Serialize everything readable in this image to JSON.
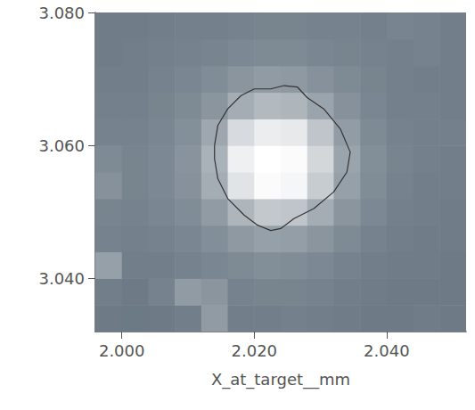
{
  "chart_data": {
    "type": "heatmap",
    "x_label": "X_at_target__mm",
    "xlim": [
      1.996,
      2.052
    ],
    "ylim": [
      3.032,
      3.08
    ],
    "xticks": [
      {
        "value": 2.0,
        "label": "2.000"
      },
      {
        "value": 2.02,
        "label": "2.020"
      },
      {
        "value": 2.04,
        "label": "2.040"
      }
    ],
    "yticks": [
      {
        "value": 3.04,
        "label": "3.040"
      },
      {
        "value": 3.06,
        "label": "3.060"
      },
      {
        "value": 3.08,
        "label": "3.080"
      }
    ],
    "grid": false,
    "x_bins": [
      1.996,
      2.0,
      2.004,
      2.008,
      2.012,
      2.016,
      2.02,
      2.024,
      2.028,
      2.032,
      2.036,
      2.04,
      2.044,
      2.048,
      2.052
    ],
    "y_bins": [
      3.032,
      3.036,
      3.04,
      3.044,
      3.048,
      3.052,
      3.056,
      3.06,
      3.064,
      3.068,
      3.072,
      3.076,
      3.08
    ],
    "zlim": [
      25,
      100
    ],
    "z": [
      [
        28,
        27,
        28,
        30,
        45,
        30,
        30,
        31,
        30,
        29,
        28,
        28,
        29,
        28
      ],
      [
        30,
        28,
        32,
        45,
        42,
        32,
        33,
        33,
        32,
        30,
        29,
        28,
        28,
        28
      ],
      [
        48,
        30,
        30,
        32,
        34,
        36,
        38,
        37,
        35,
        32,
        30,
        29,
        29,
        28
      ],
      [
        32,
        31,
        32,
        34,
        38,
        44,
        48,
        47,
        42,
        36,
        32,
        30,
        29,
        29
      ],
      [
        33,
        32,
        34,
        37,
        45,
        60,
        70,
        68,
        55,
        42,
        35,
        31,
        30,
        29
      ],
      [
        40,
        33,
        35,
        40,
        55,
        85,
        98,
        95,
        72,
        48,
        37,
        32,
        30,
        30
      ],
      [
        36,
        33,
        35,
        41,
        58,
        92,
        100,
        98,
        78,
        50,
        38,
        33,
        31,
        30
      ],
      [
        32,
        32,
        34,
        39,
        52,
        80,
        90,
        88,
        68,
        46,
        36,
        32,
        31,
        31
      ],
      [
        31,
        31,
        33,
        36,
        42,
        55,
        62,
        60,
        50,
        40,
        34,
        31,
        31,
        30
      ],
      [
        30,
        30,
        32,
        34,
        37,
        42,
        45,
        44,
        40,
        36,
        33,
        31,
        30,
        30
      ],
      [
        29,
        30,
        31,
        32,
        33,
        35,
        36,
        36,
        34,
        33,
        32,
        31,
        32,
        30
      ],
      [
        29,
        29,
        30,
        31,
        31,
        32,
        33,
        33,
        32,
        32,
        31,
        33,
        32,
        30
      ]
    ],
    "contour": {
      "x": [
        2.014,
        2.0145,
        2.016,
        2.018,
        2.02,
        2.0225,
        2.0245,
        2.0265,
        2.028,
        2.0305,
        2.033,
        2.0345,
        2.034,
        2.032,
        2.029,
        2.026,
        2.024,
        2.0225,
        2.0205,
        2.0185,
        2.016,
        2.0145,
        2.014,
        2.014
      ],
      "y": [
        3.06,
        3.063,
        3.0655,
        3.0675,
        3.0685,
        3.0685,
        3.069,
        3.0688,
        3.0672,
        3.0655,
        3.0625,
        3.059,
        3.056,
        3.053,
        3.0505,
        3.049,
        3.0475,
        3.0472,
        3.048,
        3.0495,
        3.052,
        3.055,
        3.058,
        3.06
      ]
    }
  }
}
